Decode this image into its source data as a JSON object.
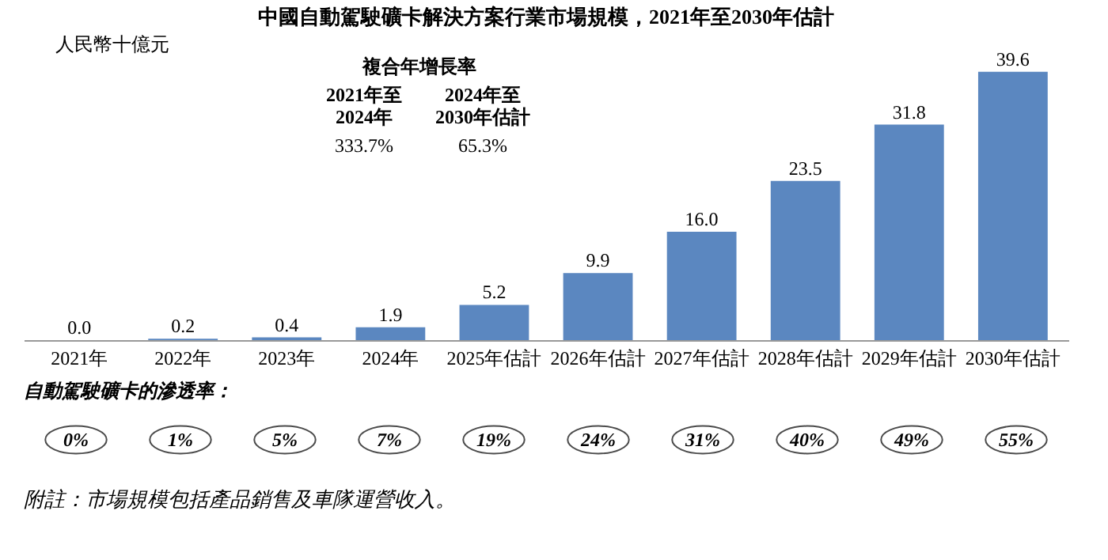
{
  "chart_data": {
    "type": "bar",
    "title": "中國自動駕駛礦卡解決方案行業市場規模，2021年至2030年估計",
    "ylabel": "人民幣十億元",
    "categories": [
      "2021年",
      "2022年",
      "2023年",
      "2024年",
      "2025年估計",
      "2026年估計",
      "2027年估計",
      "2028年估計",
      "2029年估計",
      "2030年估計"
    ],
    "values": [
      0.0,
      0.2,
      0.4,
      1.9,
      5.2,
      9.9,
      16.0,
      23.5,
      31.8,
      39.6
    ],
    "value_labels": [
      "0.0",
      "0.2",
      "0.4",
      "1.9",
      "5.2",
      "9.9",
      "16.0",
      "23.5",
      "31.8",
      "39.6"
    ],
    "color": "#5b87c0",
    "annotations": [
      "複合年增長率",
      "2021年至\n2024年",
      "2024年至\n2030年估計",
      "333.7%",
      "65.3%",
      "自動駕駛礦卡的滲透率：",
      "附註：市場規模包括產品銷售及車隊運營收入。",
      "0%",
      "1%",
      "5%",
      "7%",
      "19%",
      "24%",
      "31%",
      "40%",
      "49%",
      "55%"
    ]
  }
}
